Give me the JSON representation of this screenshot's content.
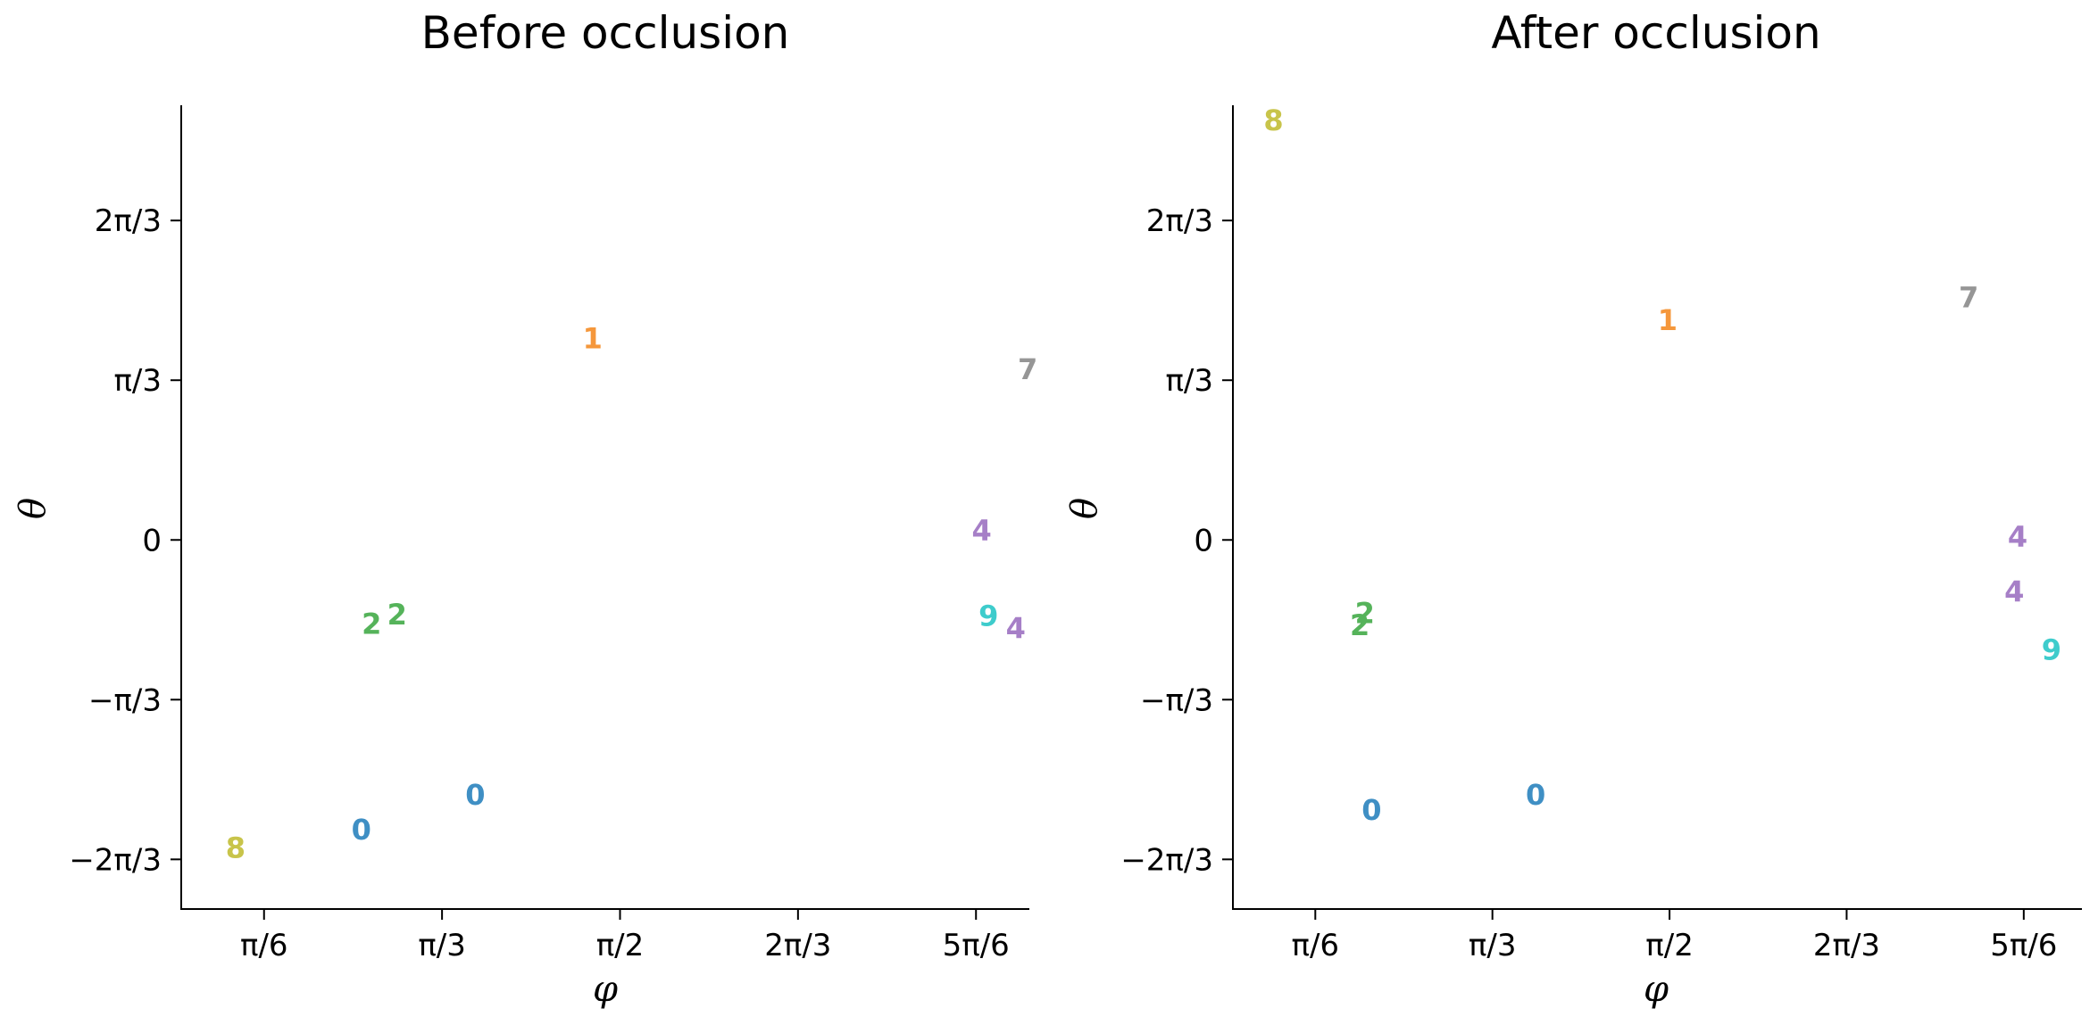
{
  "colors": {
    "0": "#3f8fc4",
    "1": "#f5973b",
    "2": "#55b35a",
    "4": "#a67fc7",
    "7": "#969696",
    "8": "#c8c44a",
    "9": "#3ecccc"
  },
  "chart_data": [
    {
      "type": "scatter",
      "title": "Before occlusion",
      "xlabel": "φ",
      "ylabel": "θ",
      "xlim": [
        0.28,
        2.775
      ],
      "ylim": [
        -2.42,
        2.85
      ],
      "xticks": [
        {
          "value": 0.5236,
          "label": "π/6"
        },
        {
          "value": 1.0472,
          "label": "π/3"
        },
        {
          "value": 1.5708,
          "label": "π/2"
        },
        {
          "value": 2.0944,
          "label": "2π/3"
        },
        {
          "value": 2.618,
          "label": "5π/6"
        }
      ],
      "yticks": [
        {
          "value": 2.0944,
          "label": "2π/3"
        },
        {
          "value": 1.0472,
          "label": "π/3"
        },
        {
          "value": 0,
          "label": "0"
        },
        {
          "value": -1.0472,
          "label": "−π/3"
        },
        {
          "value": -2.0944,
          "label": "−2π/3"
        }
      ],
      "points": [
        {
          "label": "1",
          "x": 1.49,
          "y": 1.32
        },
        {
          "label": "7",
          "x": 2.77,
          "y": 1.12
        },
        {
          "label": "4",
          "x": 2.635,
          "y": 0.06
        },
        {
          "label": "2",
          "x": 0.84,
          "y": -0.55
        },
        {
          "label": "2",
          "x": 0.915,
          "y": -0.49
        },
        {
          "label": "9",
          "x": 2.655,
          "y": -0.5
        },
        {
          "label": "4",
          "x": 2.735,
          "y": -0.58
        },
        {
          "label": "0",
          "x": 1.145,
          "y": -1.67
        },
        {
          "label": "0",
          "x": 0.81,
          "y": -1.9
        },
        {
          "label": "8",
          "x": 0.44,
          "y": -2.02
        }
      ]
    },
    {
      "type": "scatter",
      "title": "After occlusion",
      "xlabel": "φ",
      "ylabel": "θ",
      "xlim": [
        0.28,
        2.79
      ],
      "ylim": [
        -2.42,
        2.85
      ],
      "xticks": [
        {
          "value": 0.5236,
          "label": "π/6"
        },
        {
          "value": 1.0472,
          "label": "π/3"
        },
        {
          "value": 1.5708,
          "label": "π/2"
        },
        {
          "value": 2.0944,
          "label": "2π/3"
        },
        {
          "value": 2.618,
          "label": "5π/6"
        }
      ],
      "yticks": [
        {
          "value": 2.0944,
          "label": "2π/3"
        },
        {
          "value": 1.0472,
          "label": "π/3"
        },
        {
          "value": 0,
          "label": "0"
        },
        {
          "value": -1.0472,
          "label": "−π/3"
        },
        {
          "value": -2.0944,
          "label": "−2π/3"
        }
      ],
      "points": [
        {
          "label": "8",
          "x": 0.4,
          "y": 2.75
        },
        {
          "label": "7",
          "x": 2.455,
          "y": 1.59
        },
        {
          "label": "1",
          "x": 1.565,
          "y": 1.44
        },
        {
          "label": "4",
          "x": 2.6,
          "y": 0.02
        },
        {
          "label": "4",
          "x": 2.59,
          "y": -0.34
        },
        {
          "label": "2",
          "x": 0.67,
          "y": -0.48
        },
        {
          "label": "2",
          "x": 0.655,
          "y": -0.56
        },
        {
          "label": "9",
          "x": 2.7,
          "y": -0.72
        },
        {
          "label": "0",
          "x": 1.175,
          "y": -1.67
        },
        {
          "label": "0",
          "x": 0.69,
          "y": -1.77
        }
      ]
    }
  ]
}
